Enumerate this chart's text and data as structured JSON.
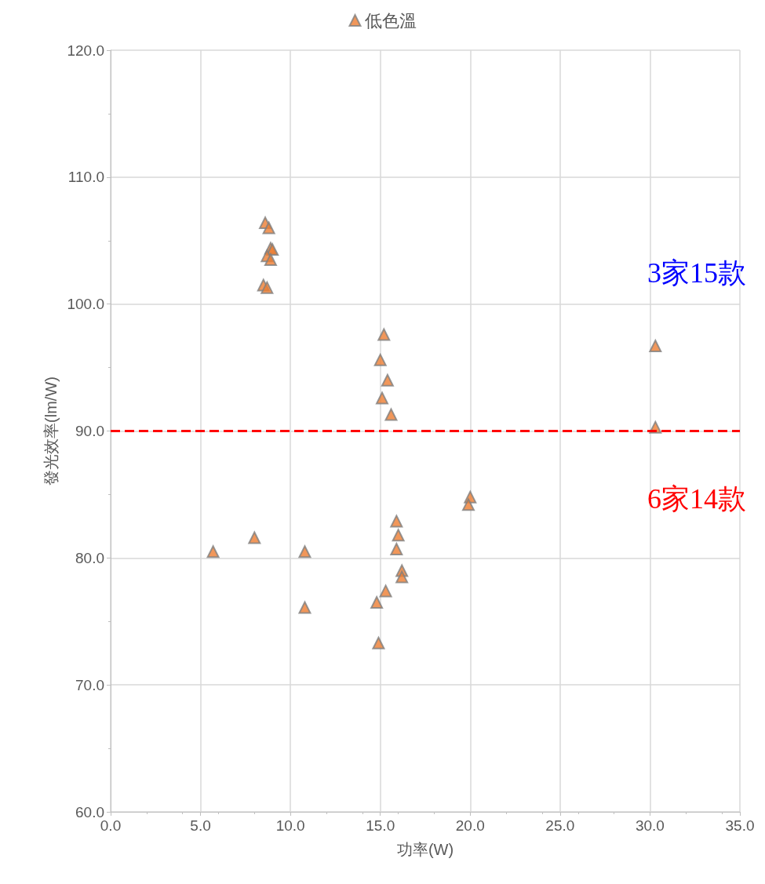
{
  "chart_data": {
    "type": "scatter",
    "xlabel": "功率(W)",
    "ylabel": "發光效率(lm/W)",
    "series": [
      {
        "name": "低色溫",
        "color": "#ed7d31",
        "x": [
          8.6,
          8.8,
          8.9,
          9.0,
          8.7,
          8.9,
          8.5,
          8.7,
          15.2,
          15.0,
          15.4,
          15.1,
          15.6,
          30.3,
          30.3,
          20.0,
          19.9,
          15.9,
          16.0,
          15.9,
          16.2,
          16.2,
          15.3,
          14.8,
          14.9,
          5.7,
          8.0,
          10.8,
          10.8
        ],
        "values": [
          106.4,
          106.0,
          104.4,
          104.3,
          103.8,
          103.5,
          101.5,
          101.3,
          97.6,
          95.6,
          94.0,
          92.6,
          91.3,
          96.7,
          90.3,
          84.8,
          84.2,
          82.9,
          81.8,
          80.7,
          79.0,
          78.5,
          77.4,
          76.5,
          73.3,
          80.5,
          81.6,
          80.5,
          76.1
        ]
      }
    ],
    "xlim": [
      0,
      35
    ],
    "xticks": [
      {
        "value": 0,
        "label": "0.0"
      },
      {
        "value": 5,
        "label": "5.0"
      },
      {
        "value": 10,
        "label": "10.0"
      },
      {
        "value": 15,
        "label": "15.0"
      },
      {
        "value": 20,
        "label": "20.0"
      },
      {
        "value": 25,
        "label": "25.0"
      },
      {
        "value": 30,
        "label": "30.0"
      },
      {
        "value": 35,
        "label": "35.0"
      }
    ],
    "ylim": [
      60,
      120
    ],
    "yticks": [
      {
        "value": 60,
        "label": "60.0"
      },
      {
        "value": 70,
        "label": "70.0"
      },
      {
        "value": 80,
        "label": "80.0"
      },
      {
        "value": 90,
        "label": "90.0"
      },
      {
        "value": 100,
        "label": "100.0"
      },
      {
        "value": 110,
        "label": "110.0"
      },
      {
        "value": 120,
        "label": "120.0"
      }
    ],
    "ref_lines": [
      {
        "axis": "y",
        "value": 90,
        "color": "#ff0000",
        "line_style": "dashed"
      }
    ],
    "annotations": [
      "3家15款",
      "6家14款"
    ],
    "grid": true,
    "legend": "top",
    "marker": "triangle"
  }
}
